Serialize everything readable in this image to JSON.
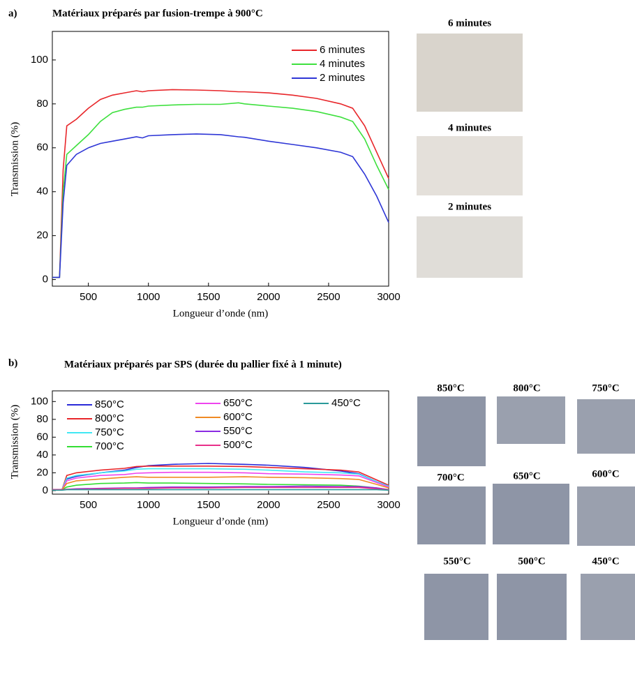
{
  "chart_data": [
    {
      "type": "line",
      "panel": "a)",
      "title": "Matériaux préparés par fusion-trempe à 900°C",
      "xlabel": "Longueur d’onde (nm)",
      "ylabel": "Transmission (%)",
      "xlim": [
        200,
        3000
      ],
      "xticks": [
        500,
        1000,
        1500,
        2000,
        2500,
        3000
      ],
      "ylim": [
        -3,
        113
      ],
      "yticks": [
        0,
        20,
        40,
        60,
        80,
        100
      ],
      "legend": "upper right",
      "x": [
        200,
        260,
        290,
        320,
        400,
        500,
        600,
        700,
        800,
        900,
        950,
        1000,
        1200,
        1400,
        1600,
        1750,
        1800,
        2000,
        2200,
        2400,
        2600,
        2700,
        2800,
        2900,
        3000
      ],
      "series": [
        {
          "name": "6 minutes",
          "color": "#e8262a",
          "values": [
            1,
            1,
            50,
            70,
            73,
            78,
            82,
            84,
            85,
            86,
            85.5,
            86,
            86.5,
            86.3,
            86,
            85.5,
            85.5,
            85,
            84,
            82.5,
            80,
            78,
            70,
            58,
            46
          ]
        },
        {
          "name": "4 minutes",
          "color": "#3ee03e",
          "values": [
            1,
            1,
            40,
            57,
            61,
            66,
            72,
            76,
            77.5,
            78.5,
            78.5,
            79,
            79.5,
            79.8,
            79.8,
            80.5,
            80,
            79,
            78,
            76.5,
            74,
            72,
            64,
            52,
            41
          ]
        },
        {
          "name": "2 minutes",
          "color": "#2e36d6",
          "values": [
            1,
            1,
            35,
            52,
            57,
            60,
            62,
            63,
            64,
            65,
            64.5,
            65.5,
            66,
            66.3,
            66,
            65,
            64.8,
            63,
            61.5,
            60,
            58,
            56,
            48,
            38,
            26
          ]
        }
      ],
      "photo_labels": [
        "6 minutes",
        "4 minutes",
        "2 minutes"
      ]
    },
    {
      "type": "line",
      "panel": "b)",
      "title": "Matériaux préparés par SPS (durée du pallier fixé à 1 minute)",
      "xlabel": "Longueur d’onde (nm)",
      "ylabel": "Transmission (%)",
      "xlim": [
        200,
        3000
      ],
      "xticks": [
        500,
        1000,
        1500,
        2000,
        2500,
        3000
      ],
      "ylim": [
        -4,
        112
      ],
      "yticks": [
        0,
        20,
        40,
        60,
        80,
        100
      ],
      "legend": "upper",
      "x": [
        200,
        280,
        320,
        400,
        600,
        800,
        900,
        1000,
        1200,
        1500,
        1800,
        2000,
        2300,
        2600,
        2750,
        2900,
        3000
      ],
      "series": [
        {
          "name": "850°C",
          "color": "#2a2ad8",
          "values": [
            1,
            1,
            13,
            16,
            20,
            23,
            26,
            28,
            29.5,
            30.5,
            29.5,
            28.5,
            26,
            22,
            19,
            10,
            5
          ]
        },
        {
          "name": "800°C",
          "color": "#e8262a",
          "values": [
            1,
            1,
            17,
            20,
            23,
            25,
            27,
            27.5,
            27.5,
            27.5,
            27,
            26,
            24.5,
            23,
            21,
            12,
            6
          ]
        },
        {
          "name": "750°C",
          "color": "#40e8f4",
          "values": [
            1,
            1,
            14,
            17,
            20,
            22,
            24,
            24.5,
            24.5,
            24.5,
            24,
            23,
            21,
            20,
            18.5,
            10,
            5
          ]
        },
        {
          "name": "700°C",
          "color": "#33dd33",
          "values": [
            1,
            1,
            4,
            6,
            8,
            8.5,
            9,
            8.5,
            8.5,
            8,
            7.5,
            7,
            6.5,
            6,
            5,
            3,
            1
          ]
        },
        {
          "name": "650°C",
          "color": "#ee44ee",
          "values": [
            1,
            1,
            11,
            14,
            17,
            18,
            19.5,
            20,
            20.5,
            20.5,
            20,
            19,
            18.5,
            17.5,
            16.5,
            9,
            4
          ]
        },
        {
          "name": "600°C",
          "color": "#f08a24",
          "values": [
            1,
            1,
            8,
            11,
            13,
            15,
            15.5,
            15,
            15,
            15,
            15.5,
            15,
            14.5,
            13.5,
            12.5,
            7,
            3
          ]
        },
        {
          "name": "550°C",
          "color": "#8a2be2",
          "values": [
            1,
            1,
            1.5,
            2,
            2.5,
            3,
            3,
            3.5,
            4,
            4,
            4.5,
            4.5,
            5,
            4.5,
            4.5,
            3,
            1
          ]
        },
        {
          "name": "500°C",
          "color": "#e8308a",
          "values": [
            1,
            1,
            1.5,
            1.5,
            2,
            2.5,
            2.5,
            2.5,
            3,
            3,
            3.5,
            3.5,
            3.5,
            3.5,
            3.5,
            2,
            1
          ]
        },
        {
          "name": "450°C",
          "color": "#2a9a9a",
          "values": [
            0.5,
            0.5,
            1,
            1,
            1,
            1,
            1,
            1,
            1,
            1,
            1,
            1,
            1,
            1,
            1,
            1,
            0.5
          ]
        }
      ],
      "photo_labels": [
        "850°C",
        "800°C",
        "750°C",
        "700°C",
        "650°C",
        "600°C",
        "550°C",
        "500°C",
        "450°C"
      ]
    }
  ]
}
